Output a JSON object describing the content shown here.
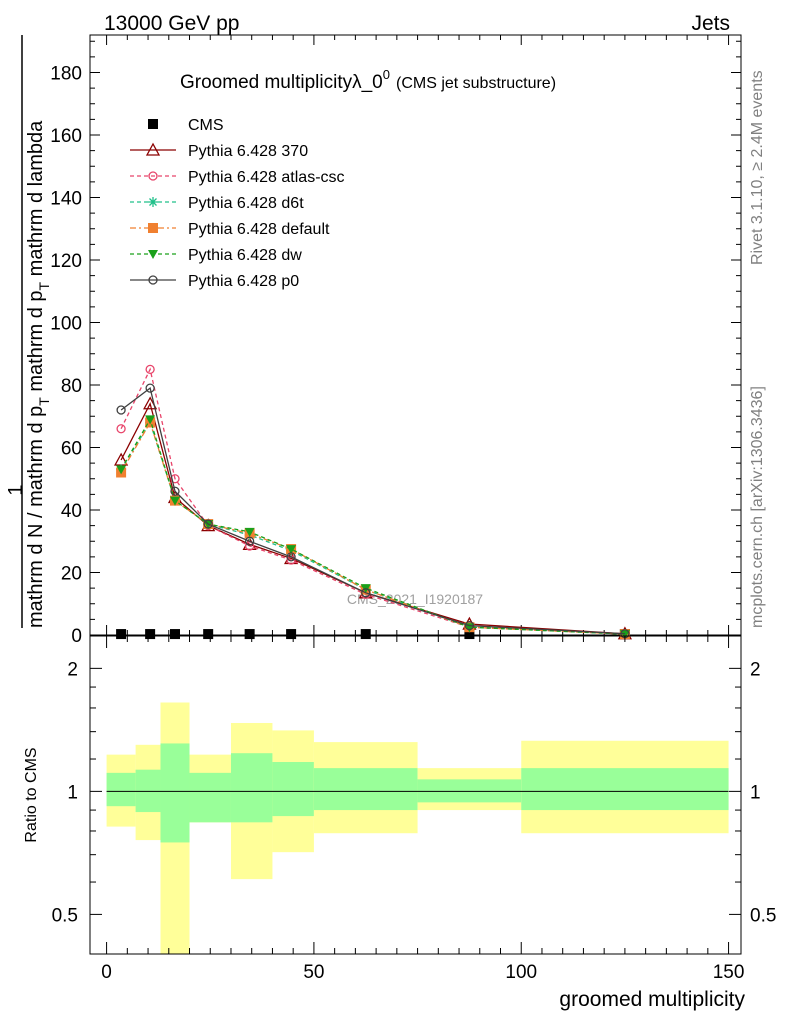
{
  "header": {
    "left": "13000 GeV pp",
    "right": "Jets"
  },
  "side_labels": {
    "rivet": "Rivet 3.1.10, ≥ 2.4M events",
    "mcplots": "mcplots.cern.ch [arXiv:1306.3436]"
  },
  "watermark": "CMS_2021_I1920187",
  "chart_data": [
    {
      "type": "line",
      "title_main": "Groomed multiplicity",
      "title_symbol": "λ_0",
      "title_sup": "0",
      "title_sub": "(CMS jet substructure)",
      "ylabel_num": "1",
      "ylabel_den_top": "mathrm dN",
      "ylabel_den_mid": "mathrm d p",
      "ylabel_den_mid_sub": "T",
      "ylabel_den_mid2": " mathrm d lambda",
      "ylabel_den": "mathrm d N / mathrm d p",
      "ylabel_den_sub": "T",
      "ylabel_den_tail": " mathrm d p",
      "ylabel_den_tail_sub": "T",
      "ylabel_den_end": " mathrm d lambda",
      "xlim": [
        -4,
        153
      ],
      "ylim": [
        0,
        192
      ],
      "y_ticks": [
        "0",
        "20",
        "40",
        "60",
        "80",
        "100",
        "120",
        "140",
        "160",
        "180"
      ],
      "legend_position": "top-left",
      "series": [
        {
          "name": "CMS",
          "color": "#000000",
          "marker": "square",
          "x": [
            3.5,
            10.5,
            16.5,
            24.5,
            34.5,
            44.5,
            62.5,
            87.5,
            125
          ],
          "y": [
            0.3,
            0.3,
            0.3,
            0.3,
            0.3,
            0.3,
            0.3,
            0.3,
            0.3
          ]
        },
        {
          "name": "Pythia 6.428 370",
          "color": "#8b0000",
          "marker": "triangle-open",
          "dash": "",
          "x": [
            3.5,
            10.5,
            16.5,
            24.5,
            34.5,
            44.5,
            62.5,
            87.5,
            125
          ],
          "y": [
            56,
            74,
            44,
            35,
            29,
            24.5,
            13.5,
            3.5,
            0.4
          ]
        },
        {
          "name": "Pythia 6.428 atlas-csc",
          "color": "#e8446a",
          "marker": "circle-open",
          "dash": "4,3",
          "x": [
            3.5,
            10.5,
            16.5,
            24.5,
            34.5,
            44.5,
            62.5,
            87.5,
            125
          ],
          "y": [
            66,
            85,
            50,
            35,
            28.5,
            24,
            13,
            2.5,
            0.3
          ]
        },
        {
          "name": "Pythia 6.428 d6t",
          "color": "#20c08a",
          "marker": "star",
          "dash": "4,3",
          "x": [
            3.5,
            10.5,
            16.5,
            24.5,
            34.5,
            44.5,
            62.5,
            87.5,
            125
          ],
          "y": [
            53,
            68,
            43,
            35.5,
            32,
            27,
            14.5,
            2.5,
            0.3
          ]
        },
        {
          "name": "Pythia 6.428 default",
          "color": "#f08030",
          "marker": "square",
          "dash": "6,3,2,3",
          "x": [
            3.5,
            10.5,
            16.5,
            24.5,
            34.5,
            44.5,
            62.5,
            87.5,
            125
          ],
          "y": [
            52,
            68,
            43,
            35.5,
            32.5,
            27.5,
            14.5,
            2.5,
            0.3
          ]
        },
        {
          "name": "Pythia 6.428 dw",
          "color": "#1aa01a",
          "marker": "triangle-down",
          "dash": "4,3",
          "x": [
            3.5,
            10.5,
            16.5,
            24.5,
            34.5,
            44.5,
            62.5,
            87.5,
            125
          ],
          "y": [
            53,
            69,
            43,
            35.5,
            33,
            27.5,
            15,
            2.5,
            0.3
          ]
        },
        {
          "name": "Pythia 6.428 p0",
          "color": "#404040",
          "marker": "circle-open",
          "dash": "",
          "x": [
            3.5,
            10.5,
            16.5,
            24.5,
            34.5,
            44.5,
            62.5,
            87.5,
            125
          ],
          "y": [
            72,
            79,
            46,
            35.5,
            30,
            25,
            13.5,
            3,
            0.4
          ]
        }
      ]
    },
    {
      "type": "area",
      "ylabel": "Ratio to CMS",
      "xlabel": "groomed multiplicity",
      "xlim": [
        -4,
        153
      ],
      "ylim": [
        0.4,
        2.4
      ],
      "log_y": true,
      "x_ticks": [
        "0",
        "50",
        "100",
        "150"
      ],
      "y_ticks": [
        "0.5",
        "1",
        "2"
      ],
      "reference_line": 1,
      "bins": [
        {
          "xlo": 0,
          "xhi": 7,
          "inner": [
            0.92,
            1.11
          ],
          "outer": [
            0.82,
            1.23
          ]
        },
        {
          "xlo": 7,
          "xhi": 13,
          "inner": [
            0.89,
            1.13
          ],
          "outer": [
            0.76,
            1.3
          ]
        },
        {
          "xlo": 13,
          "xhi": 20,
          "inner": [
            0.75,
            1.31
          ],
          "outer": [
            0.38,
            1.65
          ]
        },
        {
          "xlo": 20,
          "xhi": 30,
          "inner": [
            0.84,
            1.11
          ],
          "outer": [
            0.84,
            1.23
          ]
        },
        {
          "xlo": 30,
          "xhi": 40,
          "inner": [
            0.84,
            1.24
          ],
          "outer": [
            0.61,
            1.47
          ]
        },
        {
          "xlo": 40,
          "xhi": 50,
          "inner": [
            0.87,
            1.18
          ],
          "outer": [
            0.71,
            1.41
          ]
        },
        {
          "xlo": 50,
          "xhi": 75,
          "inner": [
            0.9,
            1.14
          ],
          "outer": [
            0.79,
            1.32
          ]
        },
        {
          "xlo": 75,
          "xhi": 100,
          "inner": [
            0.94,
            1.07
          ],
          "outer": [
            0.9,
            1.14
          ]
        },
        {
          "xlo": 100,
          "xhi": 150,
          "inner": [
            0.9,
            1.14
          ],
          "outer": [
            0.79,
            1.33
          ]
        }
      ],
      "band_colors": {
        "inner": "#99ff99",
        "outer": "#ffff99"
      }
    }
  ]
}
